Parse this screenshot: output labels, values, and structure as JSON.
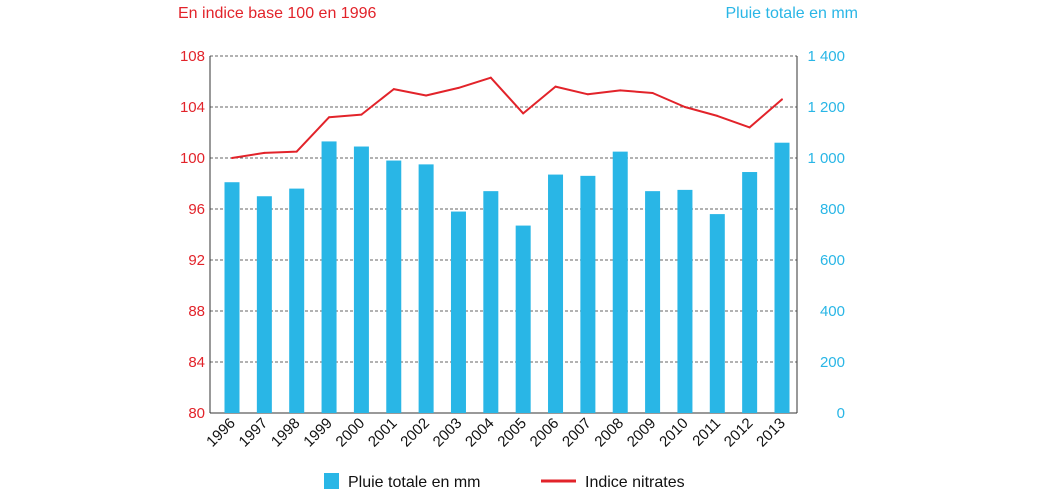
{
  "chart_data": {
    "type": "bar",
    "left_axis_title": "En indice base 100 en 1996",
    "right_axis_title": "Pluie totale en mm",
    "categories": [
      "1996",
      "1997",
      "1998",
      "1999",
      "2000",
      "2001",
      "2002",
      "2003",
      "2004",
      "2005",
      "2006",
      "2007",
      "2008",
      "2009",
      "2010",
      "2011",
      "2012",
      "2013"
    ],
    "series": [
      {
        "name": "Pluie totale en mm",
        "type": "bar",
        "axis": "right",
        "color": "#29b6e6",
        "values": [
          905,
          850,
          880,
          1065,
          1045,
          990,
          975,
          790,
          870,
          735,
          935,
          930,
          1025,
          870,
          875,
          780,
          945,
          1060
        ]
      },
      {
        "name": "Indice nitrates",
        "type": "line",
        "axis": "left",
        "color": "#e2232a",
        "values": [
          100.0,
          100.4,
          100.5,
          103.2,
          103.4,
          105.4,
          104.9,
          105.5,
          106.3,
          103.5,
          105.6,
          105.0,
          105.3,
          105.1,
          104.0,
          103.3,
          102.4,
          104.6
        ]
      }
    ],
    "left_axis": {
      "min": 80,
      "max": 108,
      "ticks": [
        "80",
        "84",
        "88",
        "92",
        "96",
        "100",
        "104",
        "108"
      ],
      "color": "#e2232a"
    },
    "right_axis": {
      "min": 0,
      "max": 1400,
      "ticks": [
        "0",
        "200",
        "400",
        "600",
        "800",
        "1 000",
        "1 200",
        "1 400"
      ],
      "color": "#29b6e6"
    },
    "grid": "horizontal dashed",
    "legend_position": "bottom"
  }
}
